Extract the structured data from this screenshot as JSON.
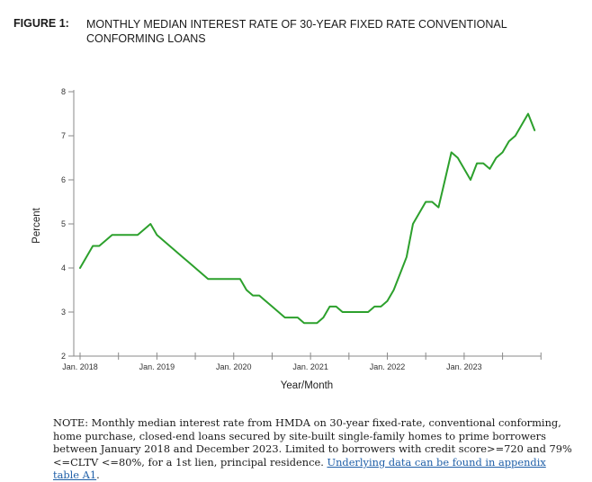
{
  "figure": {
    "label": "FIGURE 1:",
    "title": "MONTHLY MEDIAN INTEREST RATE OF 30-YEAR FIXED RATE CONVENTIONAL CONFORMING LOANS"
  },
  "chart_data": {
    "type": "line",
    "title": "",
    "xlabel": "Year/Month",
    "ylabel": "Percent",
    "xlim": [
      "2018-01",
      "2024-01"
    ],
    "ylim": [
      2,
      8
    ],
    "yticks": [
      "2",
      "3",
      "4",
      "5",
      "6",
      "7",
      "8"
    ],
    "xtick_labels": [
      "Jan. 2018",
      "Jan. 2019",
      "Jan. 2020",
      "Jan. 2021",
      "Jan. 2022",
      "Jan. 2023"
    ],
    "grid": false,
    "legend": "none",
    "series": [
      {
        "color": "#2ca02c",
        "x": [
          "2018-01",
          "2018-02",
          "2018-03",
          "2018-04",
          "2018-05",
          "2018-06",
          "2018-07",
          "2018-08",
          "2018-09",
          "2018-10",
          "2018-11",
          "2018-12",
          "2019-01",
          "2019-02",
          "2019-03",
          "2019-04",
          "2019-05",
          "2019-06",
          "2019-07",
          "2019-08",
          "2019-09",
          "2019-10",
          "2019-11",
          "2019-12",
          "2020-01",
          "2020-02",
          "2020-03",
          "2020-04",
          "2020-05",
          "2020-06",
          "2020-07",
          "2020-08",
          "2020-09",
          "2020-10",
          "2020-11",
          "2020-12",
          "2021-01",
          "2021-02",
          "2021-03",
          "2021-04",
          "2021-05",
          "2021-06",
          "2021-07",
          "2021-08",
          "2021-09",
          "2021-10",
          "2021-11",
          "2021-12",
          "2022-01",
          "2022-02",
          "2022-03",
          "2022-04",
          "2022-05",
          "2022-06",
          "2022-07",
          "2022-08",
          "2022-09",
          "2022-10",
          "2022-11",
          "2022-12",
          "2023-01",
          "2023-02",
          "2023-03",
          "2023-04",
          "2023-05",
          "2023-06",
          "2023-07",
          "2023-08",
          "2023-09",
          "2023-10",
          "2023-11",
          "2023-12"
        ],
        "y": [
          4.0,
          4.25,
          4.5,
          4.5,
          4.625,
          4.75,
          4.75,
          4.75,
          4.75,
          4.75,
          4.875,
          5.0,
          4.75,
          4.625,
          4.5,
          4.375,
          4.25,
          4.125,
          4.0,
          3.875,
          3.75,
          3.75,
          3.75,
          3.75,
          3.75,
          3.75,
          3.5,
          3.375,
          3.375,
          3.25,
          3.125,
          3.0,
          2.875,
          2.875,
          2.875,
          2.75,
          2.75,
          2.75,
          2.875,
          3.125,
          3.125,
          3.0,
          3.0,
          3.0,
          3.0,
          3.0,
          3.125,
          3.125,
          3.25,
          3.5,
          3.875,
          4.25,
          5.0,
          5.25,
          5.5,
          5.5,
          5.375,
          6.0,
          6.625,
          6.5,
          6.25,
          6.0,
          6.375,
          6.375,
          6.25,
          6.5,
          6.625,
          6.875,
          7.0,
          7.25,
          7.5,
          7.125
        ]
      }
    ]
  },
  "note": {
    "text": "NOTE: Monthly median interest rate from HMDA on 30-year fixed-rate, conventional conforming, home purchase, closed-end loans secured by site-built single-family homes to prime borrowers between January 2018 and December 2023. Limited to borrowers with credit score>=720 and 79%<=CLTV <=80%, for a 1st lien, principal residence. ",
    "link_text": "Underlying data can be found in appendix table A1",
    "end": "."
  }
}
